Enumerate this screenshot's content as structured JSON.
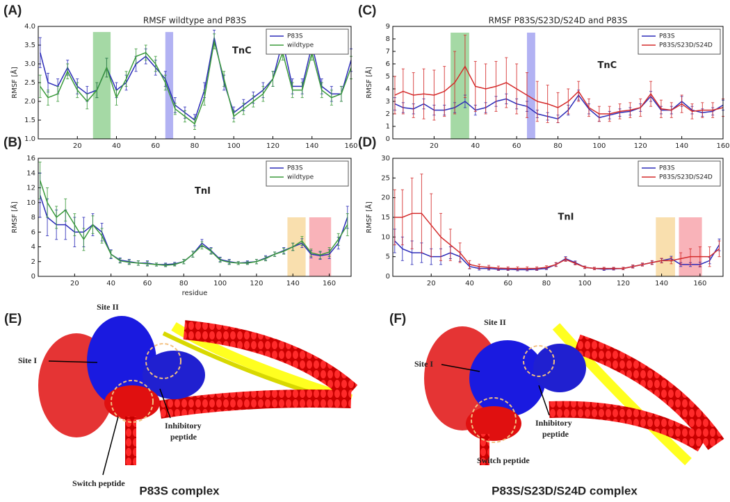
{
  "chart_data": [
    {
      "type": "line",
      "panel": "(A)",
      "title": "RMSF wildtype and P83S",
      "annotation": "TnC",
      "y_label": "RMSF [Å]",
      "x": [
        1,
        5,
        10,
        15,
        20,
        25,
        30,
        35,
        40,
        45,
        50,
        55,
        60,
        65,
        70,
        75,
        80,
        85,
        90,
        95,
        100,
        105,
        110,
        115,
        120,
        125,
        130,
        135,
        140,
        145,
        150,
        155,
        160
      ],
      "xlim": [
        0,
        160
      ],
      "xticks": [
        20,
        40,
        60,
        80,
        100,
        120,
        140,
        160
      ],
      "ylim": [
        1.0,
        4.0
      ],
      "yticks": [
        {
          "value": 1,
          "label": "1.0"
        },
        {
          "value": 1.5,
          "label": "1.5"
        },
        {
          "value": 2,
          "label": "2.0"
        },
        {
          "value": 2.5,
          "label": "2.5"
        },
        {
          "value": 3,
          "label": "3.0"
        },
        {
          "value": 3.5,
          "label": "3.5"
        },
        {
          "value": 4,
          "label": "4.0"
        }
      ],
      "highlights": [
        {
          "range": [
            28,
            37
          ],
          "y": [
            1.0,
            3.85
          ],
          "color": "#8fcf8f"
        },
        {
          "range": [
            65,
            69
          ],
          "y": [
            1.0,
            3.85
          ],
          "color": "#9f9ff0"
        }
      ],
      "series": [
        {
          "name": "P83S",
          "color": "#2b2bb8",
          "values": [
            3.3,
            2.5,
            2.4,
            2.9,
            2.4,
            2.2,
            2.3,
            2.9,
            2.3,
            2.5,
            3.0,
            3.2,
            2.9,
            2.6,
            1.9,
            1.7,
            1.5,
            2.3,
            3.7,
            2.5,
            1.7,
            1.9,
            2.1,
            2.3,
            2.6,
            3.6,
            2.4,
            2.4,
            3.5,
            2.4,
            2.2,
            2.2,
            3.1
          ],
          "errors": [
            0.4,
            0.25,
            0.2,
            0.2,
            0.2,
            0.2,
            0.2,
            0.25,
            0.2,
            0.2,
            0.2,
            0.2,
            0.2,
            0.2,
            0.2,
            0.15,
            0.15,
            0.2,
            0.2,
            0.2,
            0.15,
            0.15,
            0.15,
            0.2,
            0.2,
            0.25,
            0.2,
            0.2,
            0.25,
            0.2,
            0.2,
            0.2,
            0.3
          ]
        },
        {
          "name": "wildtype",
          "color": "#3a9a3a",
          "values": [
            2.4,
            2.1,
            2.2,
            2.8,
            2.3,
            2.0,
            2.3,
            2.9,
            2.1,
            2.6,
            3.2,
            3.3,
            3.0,
            2.5,
            1.8,
            1.6,
            1.4,
            2.1,
            3.6,
            2.6,
            1.6,
            1.8,
            2.0,
            2.2,
            2.6,
            3.3,
            2.3,
            2.3,
            3.3,
            2.3,
            2.1,
            2.2,
            2.9
          ],
          "errors": [
            0.3,
            0.2,
            0.2,
            0.2,
            0.2,
            0.2,
            0.2,
            0.25,
            0.2,
            0.2,
            0.2,
            0.2,
            0.2,
            0.2,
            0.15,
            0.15,
            0.15,
            0.2,
            0.2,
            0.2,
            0.15,
            0.15,
            0.15,
            0.2,
            0.2,
            0.2,
            0.2,
            0.2,
            0.2,
            0.2,
            0.2,
            0.2,
            0.3
          ]
        }
      ]
    },
    {
      "type": "line",
      "panel": "(B)",
      "annotation": "TnI",
      "y_label": "RMSF [Å]",
      "x_label": "residue",
      "x": [
        1,
        5,
        10,
        15,
        20,
        25,
        30,
        35,
        40,
        45,
        50,
        55,
        60,
        65,
        70,
        75,
        80,
        85,
        90,
        95,
        100,
        105,
        110,
        115,
        120,
        125,
        130,
        135,
        140,
        145,
        150,
        155,
        160,
        165,
        170
      ],
      "xlim": [
        0,
        172
      ],
      "xticks": [
        20,
        40,
        60,
        80,
        100,
        120,
        140,
        160
      ],
      "ylim": [
        0,
        16
      ],
      "yticks": [
        0,
        2,
        4,
        6,
        8,
        10,
        12,
        14,
        16
      ],
      "highlights": [
        {
          "range": [
            137,
            147
          ],
          "y": [
            0,
            8
          ],
          "color": "#f7d79a"
        },
        {
          "range": [
            149,
            161
          ],
          "y": [
            0,
            8
          ],
          "color": "#f7a0a8"
        }
      ],
      "series": [
        {
          "name": "P83S",
          "color": "#2b2bb8",
          "values": [
            11,
            8,
            7,
            7,
            6,
            6,
            7,
            6,
            3,
            2.2,
            2,
            1.8,
            1.8,
            1.6,
            1.6,
            1.7,
            2,
            3,
            4.5,
            3.5,
            2.3,
            2,
            1.8,
            1.9,
            2,
            2.5,
            3,
            3.5,
            4,
            4.5,
            3,
            2.8,
            3,
            4.5,
            8
          ],
          "errors": [
            3,
            2.5,
            2,
            2,
            2,
            2,
            1.5,
            1.2,
            0.6,
            0.3,
            0.3,
            0.3,
            0.3,
            0.2,
            0.2,
            0.2,
            0.3,
            0.4,
            0.5,
            0.4,
            0.3,
            0.3,
            0.2,
            0.2,
            0.3,
            0.3,
            0.3,
            0.4,
            0.5,
            0.6,
            0.5,
            0.5,
            0.6,
            0.8,
            1.5
          ]
        },
        {
          "name": "wildtype",
          "color": "#3a9a3a",
          "values": [
            13,
            10,
            8,
            9,
            7,
            5,
            7,
            5.5,
            3,
            2.1,
            1.9,
            1.8,
            1.7,
            1.6,
            1.5,
            1.6,
            2,
            3,
            4.2,
            3.4,
            2.2,
            1.9,
            1.8,
            1.8,
            2,
            2.4,
            3,
            3.4,
            4,
            4.8,
            3.2,
            2.9,
            3.3,
            5,
            7
          ],
          "errors": [
            2.5,
            2,
            1.5,
            1.5,
            1.5,
            1.5,
            1.2,
            1,
            0.5,
            0.3,
            0.3,
            0.3,
            0.3,
            0.2,
            0.2,
            0.2,
            0.3,
            0.4,
            0.5,
            0.4,
            0.3,
            0.3,
            0.2,
            0.2,
            0.3,
            0.3,
            0.3,
            0.4,
            0.5,
            0.6,
            0.5,
            0.5,
            0.6,
            0.8,
            1.5
          ]
        }
      ]
    },
    {
      "type": "line",
      "panel": "(C)",
      "title": "RMSF P83S/S23D/S24D and P83S",
      "annotation": "TnC",
      "y_label": "RMSF [Å]",
      "x": [
        1,
        5,
        10,
        15,
        20,
        25,
        30,
        35,
        40,
        45,
        50,
        55,
        60,
        65,
        70,
        75,
        80,
        85,
        90,
        95,
        100,
        105,
        110,
        115,
        120,
        125,
        130,
        135,
        140,
        145,
        150,
        155,
        160
      ],
      "xlim": [
        0,
        160
      ],
      "xticks": [
        20,
        40,
        60,
        80,
        100,
        120,
        140,
        160
      ],
      "ylim": [
        0,
        9
      ],
      "yticks": [
        0,
        1,
        2,
        3,
        4,
        5,
        6,
        7,
        8,
        9
      ],
      "highlights": [
        {
          "range": [
            28,
            37
          ],
          "y": [
            0,
            8.5
          ],
          "color": "#8fcf8f"
        },
        {
          "range": [
            65,
            69
          ],
          "y": [
            0,
            8.5
          ],
          "color": "#9f9ff0"
        }
      ],
      "series": [
        {
          "name": "P83S",
          "color": "#2b2bb8",
          "values": [
            2.8,
            2.5,
            2.4,
            2.8,
            2.3,
            2.3,
            2.5,
            3.0,
            2.3,
            2.5,
            3.0,
            3.2,
            2.8,
            2.6,
            2.0,
            1.8,
            1.6,
            2.3,
            3.5,
            2.4,
            1.7,
            1.9,
            2.1,
            2.2,
            2.5,
            3.4,
            2.3,
            2.3,
            3.0,
            2.3,
            2.1,
            2.2,
            2.7
          ],
          "errors": [
            0.5,
            0.4,
            0.4,
            0.4,
            0.4,
            0.4,
            0.4,
            0.5,
            0.4,
            0.4,
            0.4,
            0.4,
            0.4,
            0.4,
            0.3,
            0.3,
            0.3,
            0.4,
            0.4,
            0.4,
            0.3,
            0.3,
            0.3,
            0.3,
            0.3,
            0.4,
            0.3,
            0.3,
            0.4,
            0.3,
            0.3,
            0.3,
            0.4
          ]
        },
        {
          "name": "P83S/S23D/S24D",
          "color": "#d42a2a",
          "values": [
            3.5,
            3.8,
            3.5,
            3.6,
            3.5,
            3.8,
            4.5,
            5.8,
            4.2,
            4.0,
            4.2,
            4.5,
            4.0,
            3.5,
            3.0,
            2.8,
            2.5,
            3.0,
            3.8,
            2.5,
            2.0,
            2.0,
            2.2,
            2.3,
            2.5,
            3.6,
            2.4,
            2.3,
            2.8,
            2.2,
            2.3,
            2.3,
            2.5
          ],
          "errors": [
            1.5,
            1.8,
            1.8,
            2,
            2,
            2,
            2.5,
            2.5,
            2,
            2,
            2,
            2,
            2,
            1.8,
            1.6,
            1.5,
            1.2,
            1,
            0.8,
            0.7,
            0.6,
            0.6,
            0.6,
            0.6,
            0.7,
            1,
            0.7,
            0.6,
            0.7,
            0.6,
            0.6,
            0.6,
            0.7
          ]
        }
      ]
    },
    {
      "type": "line",
      "panel": "(D)",
      "annotation": "TnI",
      "y_label": "RMSF [Å]",
      "x": [
        1,
        5,
        10,
        15,
        20,
        25,
        30,
        35,
        40,
        45,
        50,
        55,
        60,
        65,
        70,
        75,
        80,
        85,
        90,
        95,
        100,
        105,
        110,
        115,
        120,
        125,
        130,
        135,
        140,
        145,
        150,
        155,
        160,
        165,
        170
      ],
      "xlim": [
        0,
        172
      ],
      "xticks": [
        20,
        40,
        60,
        80,
        100,
        120,
        140,
        160
      ],
      "ylim": [
        0,
        30
      ],
      "yticks": [
        0,
        5,
        10,
        15,
        20,
        25,
        30
      ],
      "highlights": [
        {
          "range": [
            137,
            147
          ],
          "y": [
            0,
            15
          ],
          "color": "#f7d79a"
        },
        {
          "range": [
            149,
            161
          ],
          "y": [
            0,
            15
          ],
          "color": "#f7a0a8"
        }
      ],
      "series": [
        {
          "name": "P83S",
          "color": "#2b2bb8",
          "values": [
            9,
            7,
            6,
            6,
            5,
            5,
            6,
            5,
            2.5,
            2,
            2,
            1.8,
            1.8,
            1.7,
            1.7,
            1.8,
            2,
            3,
            4.5,
            3.5,
            2.3,
            2,
            1.8,
            1.9,
            2,
            2.5,
            3,
            3.5,
            4,
            4.5,
            3,
            3,
            3,
            4,
            8
          ],
          "errors": [
            3,
            3,
            3,
            2.5,
            2,
            2,
            1.5,
            1.2,
            0.6,
            0.4,
            0.4,
            0.3,
            0.3,
            0.3,
            0.3,
            0.3,
            0.3,
            0.4,
            0.5,
            0.4,
            0.3,
            0.3,
            0.3,
            0.3,
            0.3,
            0.3,
            0.3,
            0.4,
            0.5,
            0.6,
            0.5,
            0.5,
            0.6,
            0.8,
            1.5
          ]
        },
        {
          "name": "P83S/S23D/S24D",
          "color": "#d42a2a",
          "values": [
            15,
            15,
            16,
            16,
            13,
            10,
            8,
            6,
            3,
            2.5,
            2.3,
            2.1,
            2,
            2,
            2,
            2,
            2.3,
            3,
            4.3,
            3.3,
            2.3,
            2,
            2,
            2,
            2,
            2.5,
            3,
            3.5,
            4,
            4,
            4.5,
            5,
            5,
            5,
            7
          ],
          "errors": [
            7,
            7,
            9,
            10,
            8,
            6,
            4,
            2.5,
            1,
            0.6,
            0.5,
            0.5,
            0.4,
            0.4,
            0.4,
            0.4,
            0.4,
            0.5,
            0.5,
            0.4,
            0.3,
            0.3,
            0.3,
            0.3,
            0.3,
            0.4,
            0.4,
            0.5,
            0.6,
            0.8,
            1.5,
            2,
            2.5,
            2.5,
            2
          ]
        }
      ]
    }
  ],
  "structures": [
    {
      "panel": "(E)",
      "site2": "Site II",
      "site1": "Site I",
      "inhibitory": [
        "Inhibitory",
        "peptide"
      ],
      "switch": "Switch peptide",
      "caption": "P83S complex"
    },
    {
      "panel": "(F)",
      "site2": "Site II",
      "site1": "Site I",
      "inhibitory": [
        "Inhibitory",
        "peptide"
      ],
      "switch": "Switch peptide",
      "caption": "P83S/S23D/S24D complex"
    }
  ]
}
